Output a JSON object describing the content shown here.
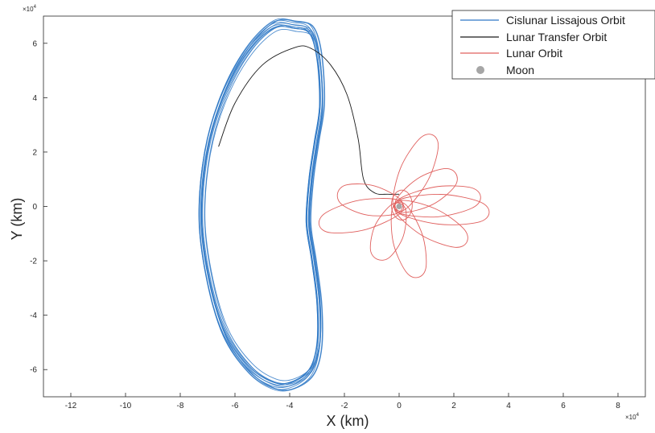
{
  "chart_data": {
    "type": "line",
    "title": "",
    "xlabel": "X (km)",
    "ylabel": "Y (km)",
    "x_exponent": "×10",
    "x_exponent_power": "4",
    "y_exponent": "×10",
    "y_exponent_power": "4",
    "xlim": [
      -13,
      9
    ],
    "ylim": [
      -7,
      7
    ],
    "x_ticks": [
      -12,
      -10,
      -8,
      -6,
      -4,
      -2,
      0,
      2,
      4,
      6,
      8
    ],
    "x_tick_labels": [
      "-12",
      "-10",
      "-8",
      "-6",
      "-4",
      "-2",
      "0",
      "2",
      "4",
      "6",
      "8"
    ],
    "y_ticks": [
      -6,
      -4,
      -2,
      0,
      2,
      4,
      6
    ],
    "y_tick_labels": [
      "-6",
      "-4",
      "-2",
      "0",
      "2",
      "4",
      "6"
    ],
    "grid": false,
    "legend_position": "top-right",
    "series": [
      {
        "name": "Cislunar Lissajous Orbit",
        "color": "#2e78c6",
        "kind": "lissajous",
        "loops": 12,
        "points": [
          [
            -3.2,
            6.6
          ],
          [
            -2.9,
            5.6
          ],
          [
            -2.8,
            3.8
          ],
          [
            -3.0,
            2.4
          ],
          [
            -3.2,
            1.0
          ],
          [
            -3.3,
            -0.6
          ],
          [
            -3.1,
            -2.0
          ],
          [
            -2.9,
            -3.6
          ],
          [
            -2.9,
            -5.2
          ],
          [
            -3.2,
            -6.2
          ],
          [
            -3.9,
            -6.7
          ],
          [
            -4.6,
            -6.7
          ],
          [
            -5.5,
            -6.1
          ],
          [
            -6.4,
            -4.8
          ],
          [
            -7.0,
            -2.8
          ],
          [
            -7.3,
            -0.5
          ],
          [
            -7.1,
            2.0
          ],
          [
            -6.5,
            4.1
          ],
          [
            -5.6,
            5.8
          ],
          [
            -4.6,
            6.8
          ],
          [
            -3.8,
            6.8
          ],
          [
            -3.2,
            6.6
          ]
        ]
      },
      {
        "name": "Lunar Transfer Orbit",
        "color": "#1a1a1a",
        "kind": "line",
        "points": [
          [
            -6.6,
            2.2
          ],
          [
            -6.0,
            3.8
          ],
          [
            -5.0,
            5.2
          ],
          [
            -3.8,
            5.85
          ],
          [
            -3.2,
            5.8
          ],
          [
            -2.5,
            5.2
          ],
          [
            -1.9,
            4.1
          ],
          [
            -1.5,
            2.5
          ],
          [
            -1.3,
            1.0
          ],
          [
            -0.9,
            0.5
          ],
          [
            -0.4,
            0.45
          ],
          [
            0.0,
            0.45
          ]
        ]
      },
      {
        "name": "Lunar Orbit",
        "color": "#e0605e",
        "kind": "rosette",
        "petals": [
          {
            "angle": 30,
            "length": 2.4
          },
          {
            "angle": 65,
            "length": 2.9
          },
          {
            "angle": 7,
            "length": 3.0
          },
          {
            "angle": -4,
            "length": 3.3
          },
          {
            "angle": -28,
            "length": 2.8
          },
          {
            "angle": -75,
            "length": 2.7
          },
          {
            "angle": -112,
            "length": 2.1
          },
          {
            "angle": 168,
            "length": 2.3
          },
          {
            "angle": 193,
            "length": 3.0
          }
        ]
      },
      {
        "name": "Moon",
        "color": "#a6a6a6",
        "kind": "marker",
        "points": [
          [
            0,
            0
          ]
        ]
      }
    ]
  }
}
